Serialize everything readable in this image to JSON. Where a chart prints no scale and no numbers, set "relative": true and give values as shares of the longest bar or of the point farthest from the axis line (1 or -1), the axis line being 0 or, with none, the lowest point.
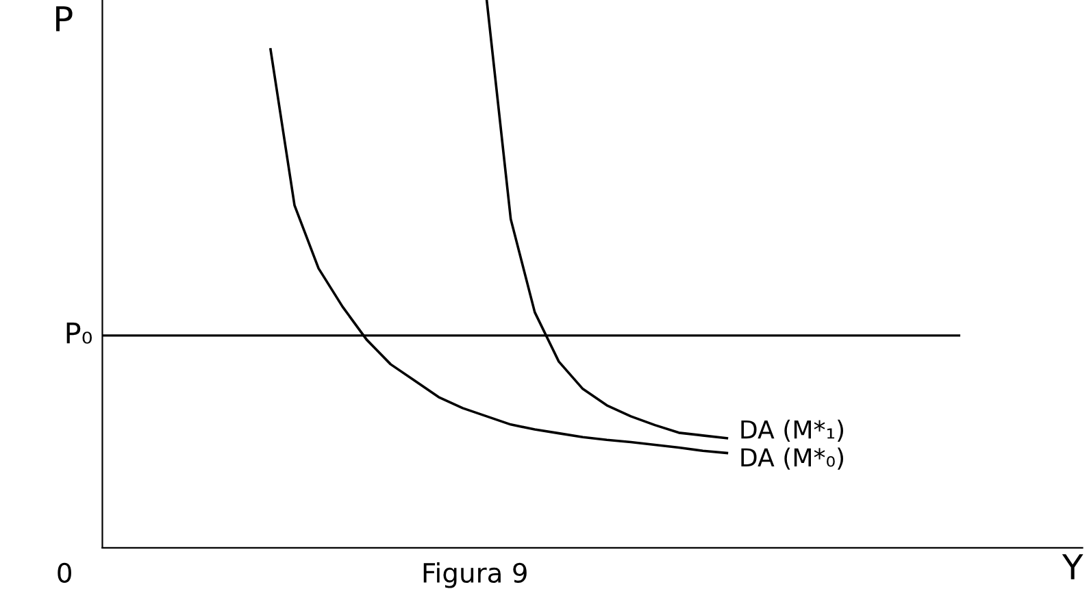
{
  "chart_data": {
    "type": "line",
    "relative": true,
    "xlabel": "Y",
    "ylabel": "P",
    "marker": "none",
    "line_style": "solid",
    "categories": [
      null,
      null,
      null,
      null,
      null,
      null,
      null,
      null,
      null,
      null,
      null,
      null,
      null,
      null,
      null,
      null,
      null,
      null,
      null,
      null,
      null,
      null,
      null,
      null,
      null,
      null,
      null,
      null,
      null,
      null,
      null,
      null,
      null,
      null,
      null,
      null,
      null,
      null,
      null,
      null,
      null
    ],
    "series": [
      {
        "name": "DA (M*₀)",
        "color": "#000000",
        "values": [
          null,
          null,
          null,
          null,
          null,
          null,
          null,
          0.91,
          0.625,
          0.51,
          0.44,
          0.38,
          0.335,
          0.305,
          0.275,
          0.255,
          0.24,
          0.225,
          0.216,
          0.209,
          0.202,
          0.197,
          0.193,
          0.188,
          0.183,
          0.177,
          0.173,
          null,
          null,
          null,
          null,
          null,
          null,
          null,
          null,
          null,
          null,
          null,
          null,
          null,
          null
        ]
      },
      {
        "name": "DA (M*₁)",
        "color": "#000000",
        "values": [
          null,
          null,
          null,
          null,
          null,
          null,
          null,
          null,
          null,
          null,
          null,
          null,
          null,
          null,
          null,
          null,
          1,
          0.6,
          0.43,
          0.34,
          0.29,
          0.26,
          0.24,
          0.224,
          0.21,
          0.205,
          0.2,
          null,
          null,
          null,
          null,
          null,
          null,
          null,
          null,
          null,
          null,
          null,
          null,
          null,
          null
        ]
      }
    ],
    "ref_lines": [
      {
        "axis": "y",
        "value": 0.3875,
        "label": "P₀",
        "color": "#000000",
        "line_style": "solid"
      }
    ],
    "annotations": [
      "0",
      "Figura 9"
    ]
  }
}
